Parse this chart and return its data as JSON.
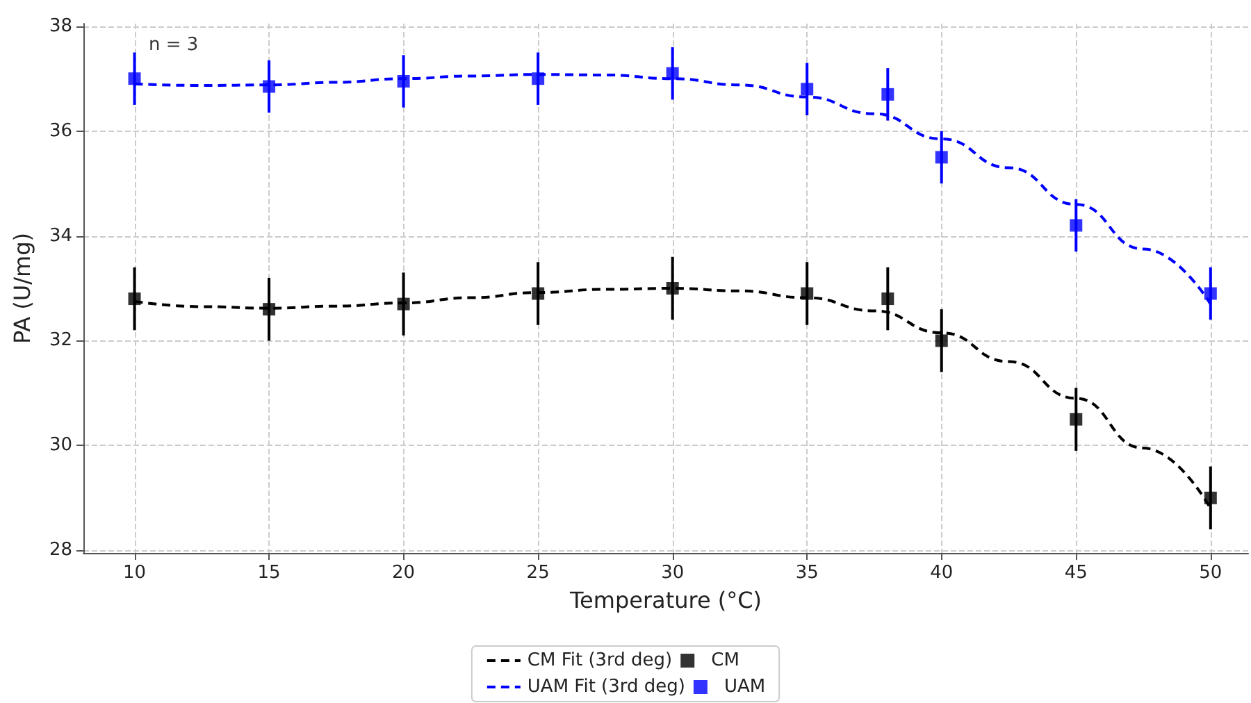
{
  "chart_data": {
    "type": "scatter",
    "xlabel": "Temperature (°C)",
    "ylabel": "PA (U/mg)",
    "annotations": [
      "n = 3"
    ],
    "xlim": [
      8.1,
      51.4
    ],
    "xticks": [
      10,
      15,
      20,
      25,
      30,
      35,
      40,
      45,
      50
    ],
    "ylim": [
      27.95,
      38.05
    ],
    "yticks": [
      28,
      30,
      32,
      34,
      36,
      38
    ],
    "grid": true,
    "legend": "bottom",
    "marker": "square",
    "series": [
      {
        "name": "CM Fit (3rd deg)",
        "type": "line",
        "marker": "none",
        "color": "#000000",
        "line_style": "dashed",
        "x": [
          10,
          12.5,
          15,
          17.5,
          20,
          22.5,
          25,
          27.5,
          30,
          32.5,
          35,
          37.5,
          40,
          42.5,
          45,
          47.5,
          50
        ],
        "values": [
          32.75,
          32.65,
          32.62,
          32.66,
          32.72,
          32.82,
          32.92,
          32.98,
          33.0,
          32.95,
          32.82,
          32.57,
          32.15,
          31.6,
          30.9,
          29.95,
          28.8
        ]
      },
      {
        "name": "CM",
        "color": "#000000",
        "x": [
          10,
          15,
          20,
          25,
          30,
          35,
          38,
          40,
          45,
          50
        ],
        "values": [
          32.8,
          32.6,
          32.7,
          32.9,
          33.0,
          32.9,
          32.8,
          32.0,
          30.5,
          29.0
        ],
        "errors": [
          0.6,
          0.6,
          0.6,
          0.6,
          0.6,
          0.6,
          0.6,
          0.6,
          0.6,
          0.6
        ]
      },
      {
        "name": "UAM Fit (3rd deg)",
        "type": "line",
        "marker": "none",
        "color": "#0000ff",
        "line_style": "dashed",
        "x": [
          10,
          12.5,
          15,
          17.5,
          20,
          22.5,
          25,
          27.5,
          30,
          32.5,
          35,
          37.5,
          40,
          42.5,
          45,
          47.5,
          50
        ],
        "values": [
          36.9,
          36.87,
          36.88,
          36.93,
          37.0,
          37.05,
          37.08,
          37.07,
          37.0,
          36.88,
          36.65,
          36.33,
          35.85,
          35.3,
          34.6,
          33.75,
          32.7
        ]
      },
      {
        "name": "UAM",
        "color": "#0000ff",
        "x": [
          10,
          15,
          20,
          25,
          30,
          35,
          38,
          40,
          45,
          50
        ],
        "values": [
          37.0,
          36.85,
          36.95,
          37.0,
          37.1,
          36.8,
          36.7,
          35.5,
          34.2,
          32.9
        ],
        "errors": [
          0.5,
          0.5,
          0.5,
          0.5,
          0.5,
          0.5,
          0.5,
          0.5,
          0.5,
          0.5
        ]
      }
    ]
  }
}
